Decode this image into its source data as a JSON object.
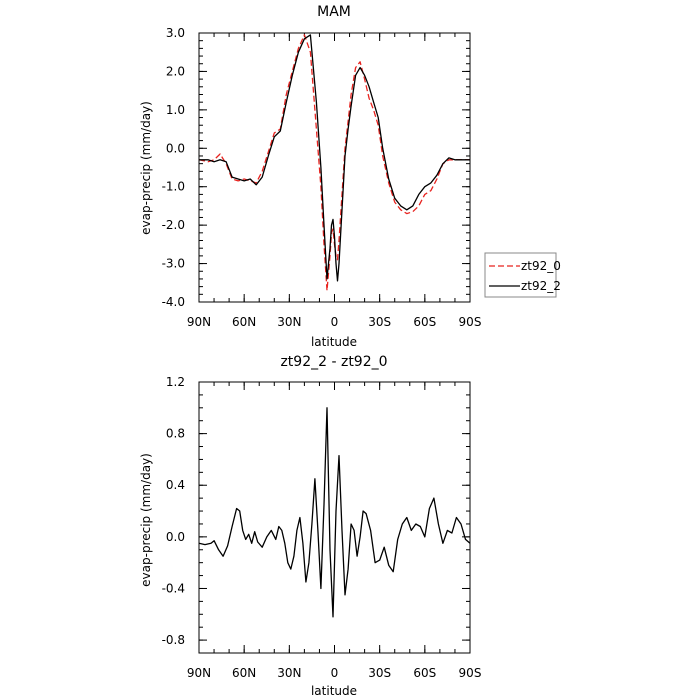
{
  "chart_data": [
    {
      "type": "line",
      "title": "MAM",
      "xlabel": "latitude",
      "ylabel": "evap-precip (mm/day)",
      "xlim": [
        90,
        -90
      ],
      "ylim": [
        -4.0,
        3.0
      ],
      "x_ticks": [
        90,
        60,
        30,
        0,
        -30,
        -60,
        -90
      ],
      "x_tick_labels": [
        "90N",
        "60N",
        "30N",
        "0",
        "30S",
        "60S",
        "90S"
      ],
      "y_ticks": [
        3.0,
        2.0,
        1.0,
        0.0,
        -1.0,
        -2.0,
        -3.0,
        -4.0
      ],
      "y_tick_labels": [
        "3.0",
        "2.0",
        "1.0",
        "0.0",
        "-1.0",
        "-2.0",
        "-3.0",
        "-4.0"
      ],
      "legend": "right",
      "series": [
        {
          "name": "zt92_0",
          "color": "#e8231f",
          "dash": "dashed",
          "x": [
            90,
            84,
            80,
            76,
            72,
            68,
            64,
            60,
            56,
            52,
            48,
            44,
            40,
            36,
            32,
            28,
            24,
            20,
            16,
            12,
            9,
            7,
            5,
            3,
            2,
            1,
            0,
            -1,
            -2,
            -3,
            -5,
            -7,
            -9,
            -11,
            -14,
            -17,
            -20,
            -23,
            -26,
            -29,
            -32,
            -36,
            -40,
            -44,
            -48,
            -52,
            -56,
            -60,
            -64,
            -68,
            -72,
            -76,
            -80,
            -84,
            -90
          ],
          "y": [
            -0.3,
            -0.35,
            -0.3,
            -0.15,
            -0.4,
            -0.8,
            -0.85,
            -0.8,
            -0.85,
            -0.9,
            -0.6,
            -0.1,
            0.4,
            0.5,
            1.4,
            2.0,
            2.6,
            2.95,
            2.5,
            0.5,
            -1.0,
            -2.5,
            -3.7,
            -2.8,
            -2.2,
            -2.1,
            -2.5,
            -2.8,
            -2.9,
            -2.4,
            -1.2,
            0.0,
            0.7,
            1.4,
            2.1,
            2.25,
            1.8,
            1.3,
            1.0,
            0.6,
            -0.2,
            -0.9,
            -1.4,
            -1.6,
            -1.7,
            -1.65,
            -1.5,
            -1.2,
            -1.1,
            -0.8,
            -0.4,
            -0.3,
            -0.3,
            -0.3,
            -0.3
          ]
        },
        {
          "name": "zt92_2",
          "color": "#000000",
          "dash": "solid",
          "x": [
            90,
            84,
            80,
            76,
            72,
            68,
            64,
            60,
            56,
            52,
            48,
            44,
            40,
            36,
            32,
            28,
            24,
            20,
            16,
            12,
            9,
            7,
            5,
            3,
            2,
            1,
            0,
            -1,
            -2,
            -3,
            -5,
            -7,
            -9,
            -11,
            -14,
            -17,
            -20,
            -23,
            -26,
            -29,
            -32,
            -36,
            -40,
            -44,
            -48,
            -52,
            -56,
            -60,
            -64,
            -68,
            -72,
            -76,
            -80,
            -84,
            -90
          ],
          "y": [
            -0.3,
            -0.3,
            -0.35,
            -0.3,
            -0.35,
            -0.75,
            -0.8,
            -0.85,
            -0.8,
            -0.95,
            -0.75,
            -0.2,
            0.3,
            0.45,
            1.2,
            1.9,
            2.5,
            2.85,
            2.95,
            1.2,
            -0.5,
            -2.0,
            -3.4,
            -2.6,
            -2.0,
            -1.85,
            -2.3,
            -3.0,
            -3.45,
            -3.0,
            -1.6,
            -0.2,
            0.5,
            1.1,
            1.9,
            2.1,
            1.9,
            1.6,
            1.2,
            0.8,
            0.0,
            -0.8,
            -1.3,
            -1.5,
            -1.6,
            -1.5,
            -1.2,
            -1.0,
            -0.9,
            -0.7,
            -0.4,
            -0.25,
            -0.3,
            -0.3,
            -0.3
          ]
        }
      ]
    },
    {
      "type": "line",
      "title": "zt92_2 - zt92_0",
      "xlabel": "latitude",
      "ylabel": "evap-precip (mm/day)",
      "xlim": [
        90,
        -90
      ],
      "ylim": [
        -0.9,
        1.2
      ],
      "x_ticks": [
        90,
        60,
        30,
        0,
        -30,
        -60,
        -90
      ],
      "x_tick_labels": [
        "90N",
        "60N",
        "30N",
        "0",
        "30S",
        "60S",
        "90S"
      ],
      "y_ticks": [
        1.2,
        0.8,
        0.4,
        0.0,
        -0.4,
        -0.8
      ],
      "y_tick_labels": [
        "1.2",
        "0.8",
        "0.4",
        "0.0",
        "-0.4",
        "-0.8"
      ],
      "series": [
        {
          "color": "#000000",
          "dash": "solid",
          "x": [
            90,
            86,
            82,
            80,
            77,
            74,
            71,
            68,
            65,
            63,
            61,
            59,
            57,
            55,
            53,
            51,
            48,
            45,
            42,
            39,
            37,
            35,
            33,
            31,
            29,
            27,
            25,
            23,
            21,
            19,
            17,
            15,
            13,
            11,
            9,
            7,
            5,
            3,
            1,
            -1,
            -3,
            -5,
            -7,
            -9,
            -11,
            -13,
            -15,
            -17,
            -19,
            -21,
            -24,
            -27,
            -30,
            -33,
            -36,
            -39,
            -42,
            -45,
            -48,
            -51,
            -54,
            -57,
            -60,
            -63,
            -66,
            -69,
            -72,
            -75,
            -78,
            -81,
            -84,
            -87,
            -90
          ],
          "y": [
            -0.05,
            -0.06,
            -0.05,
            -0.03,
            -0.1,
            -0.15,
            -0.07,
            0.08,
            0.22,
            0.2,
            0.05,
            -0.02,
            0.02,
            -0.05,
            0.04,
            -0.04,
            -0.08,
            0.0,
            0.05,
            -0.02,
            0.08,
            0.05,
            -0.05,
            -0.2,
            -0.25,
            -0.15,
            0.05,
            0.15,
            -0.05,
            -0.35,
            -0.2,
            0.1,
            0.45,
            0.05,
            -0.4,
            0.25,
            1.0,
            -0.1,
            -0.62,
            0.2,
            0.63,
            0.05,
            -0.45,
            -0.25,
            0.1,
            0.05,
            -0.15,
            0.0,
            0.2,
            0.18,
            0.05,
            -0.2,
            -0.18,
            -0.08,
            -0.22,
            -0.27,
            -0.02,
            0.1,
            0.15,
            0.05,
            0.1,
            0.08,
            0.0,
            0.22,
            0.3,
            0.1,
            -0.05,
            0.05,
            0.03,
            0.15,
            0.1,
            -0.02,
            -0.05
          ]
        }
      ]
    }
  ]
}
